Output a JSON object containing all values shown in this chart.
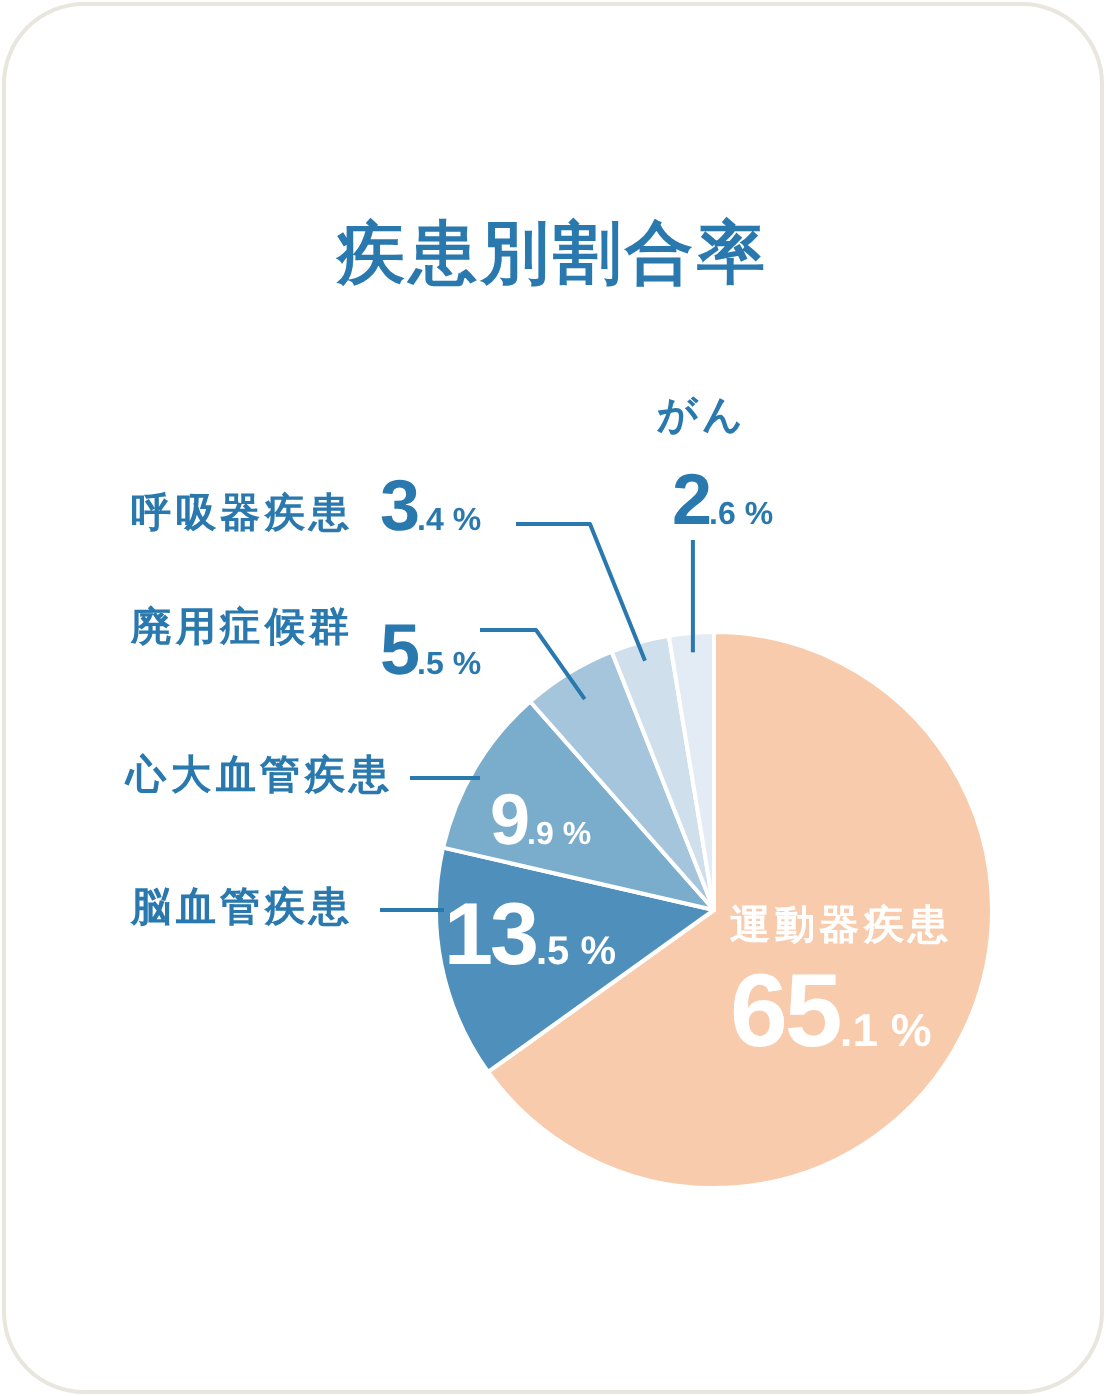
{
  "chart_data": {
    "type": "pie",
    "title": "疾患別割合率",
    "categories": [
      "運動器疾患",
      "脳血管疾患",
      "心大血管疾患",
      "廃用症候群",
      "呼吸器疾患",
      "がん"
    ],
    "values": [
      65.1,
      13.5,
      9.9,
      5.5,
      3.4,
      2.6
    ],
    "colors": [
      "#f7cbab",
      "#4f8fbb",
      "#7aaccb",
      "#a4c5db",
      "#cfe0ec",
      "#e3ecf4"
    ],
    "value_labels": [
      "65.1 %",
      "13.5 %",
      "9.9 %",
      "5.5 %",
      "3.4 %",
      "2.6 %"
    ]
  }
}
